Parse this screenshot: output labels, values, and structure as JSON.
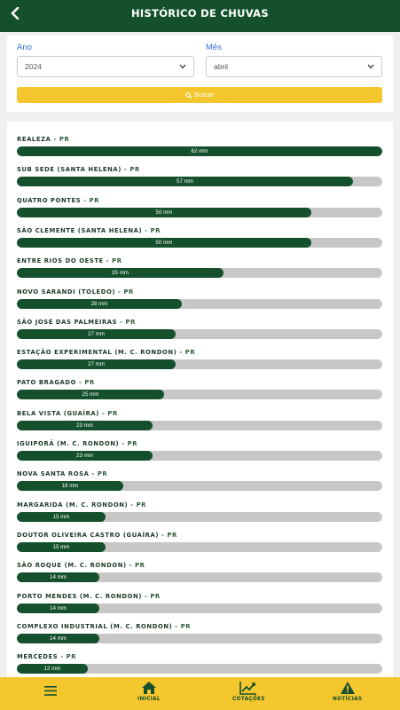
{
  "header": {
    "title": "HISTÓRICO DE CHUVAS"
  },
  "filters": {
    "year_label": "Ano",
    "year_value": "2024",
    "month_label": "Mês",
    "month_value": "abril",
    "search_label": "Buscar"
  },
  "colors": {
    "primary": "#14502c",
    "accent": "#f5c72e",
    "track": "#c7c7c7",
    "label_link": "#3b6fd4"
  },
  "max_mm": 62,
  "stations": [
    {
      "name": "REALEZA",
      "state": "PR",
      "value_label": "62 mm",
      "mm": 62
    },
    {
      "name": "SUB SEDE (SANTA HELENA)",
      "state": "PR",
      "value_label": "57 mm",
      "mm": 57
    },
    {
      "name": "QUATRO PONTES",
      "state": "PR",
      "value_label": "50 mm",
      "mm": 50
    },
    {
      "name": "SÃO CLEMENTE (SANTA HELENA)",
      "state": "PR",
      "value_label": "50 mm",
      "mm": 50
    },
    {
      "name": "ENTRE RIOS DO OESTE",
      "state": "PR",
      "value_label": "35 mm",
      "mm": 35
    },
    {
      "name": "NOVO SARANDI (TOLEDO)",
      "state": "PR",
      "value_label": "28 mm",
      "mm": 28
    },
    {
      "name": "SÃO JOSÉ DAS PALMEIRAS",
      "state": "PR",
      "value_label": "27 mm",
      "mm": 27
    },
    {
      "name": "ESTAÇÃO EXPERIMENTAL (M. C. RONDON)",
      "state": "PR",
      "value_label": "27 mm",
      "mm": 27
    },
    {
      "name": "PATO BRAGADO",
      "state": "PR",
      "value_label": "25 mm",
      "mm": 25
    },
    {
      "name": "BELA VISTA (GUAÍRA)",
      "state": "PR",
      "value_label": "23 mm",
      "mm": 23
    },
    {
      "name": "IGUIPORÃ (M. C. RONDON)",
      "state": "PR",
      "value_label": "23 mm",
      "mm": 23
    },
    {
      "name": "NOVA SANTA ROSA",
      "state": "PR",
      "value_label": "18 mm",
      "mm": 18
    },
    {
      "name": "MARGARIDA (M. C. RONDON)",
      "state": "PR",
      "value_label": "15 mm",
      "mm": 15
    },
    {
      "name": "DOUTOR OLIVEIRA CASTRO (GUAÍRA)",
      "state": "PR",
      "value_label": "15 mm",
      "mm": 15
    },
    {
      "name": "SÃO ROQUE (M. C. RONDON)",
      "state": "PR",
      "value_label": "14 mm",
      "mm": 14
    },
    {
      "name": "PORTO MENDES (M. C. RONDON)",
      "state": "PR",
      "value_label": "14 mm",
      "mm": 14
    },
    {
      "name": "COMPLEXO INDUSTRIAL (M. C. RONDON)",
      "state": "PR",
      "value_label": "14 mm",
      "mm": 14
    },
    {
      "name": "MERCEDES",
      "state": "PR",
      "value_label": "12 mm",
      "mm": 12
    }
  ],
  "nav": [
    {
      "label": "",
      "icon": "menu-icon"
    },
    {
      "label": "INICIAL",
      "icon": "home-icon"
    },
    {
      "label": "COTAÇÕES",
      "icon": "chart-icon"
    },
    {
      "label": "NOTÍCIAS",
      "icon": "alert-icon"
    }
  ]
}
